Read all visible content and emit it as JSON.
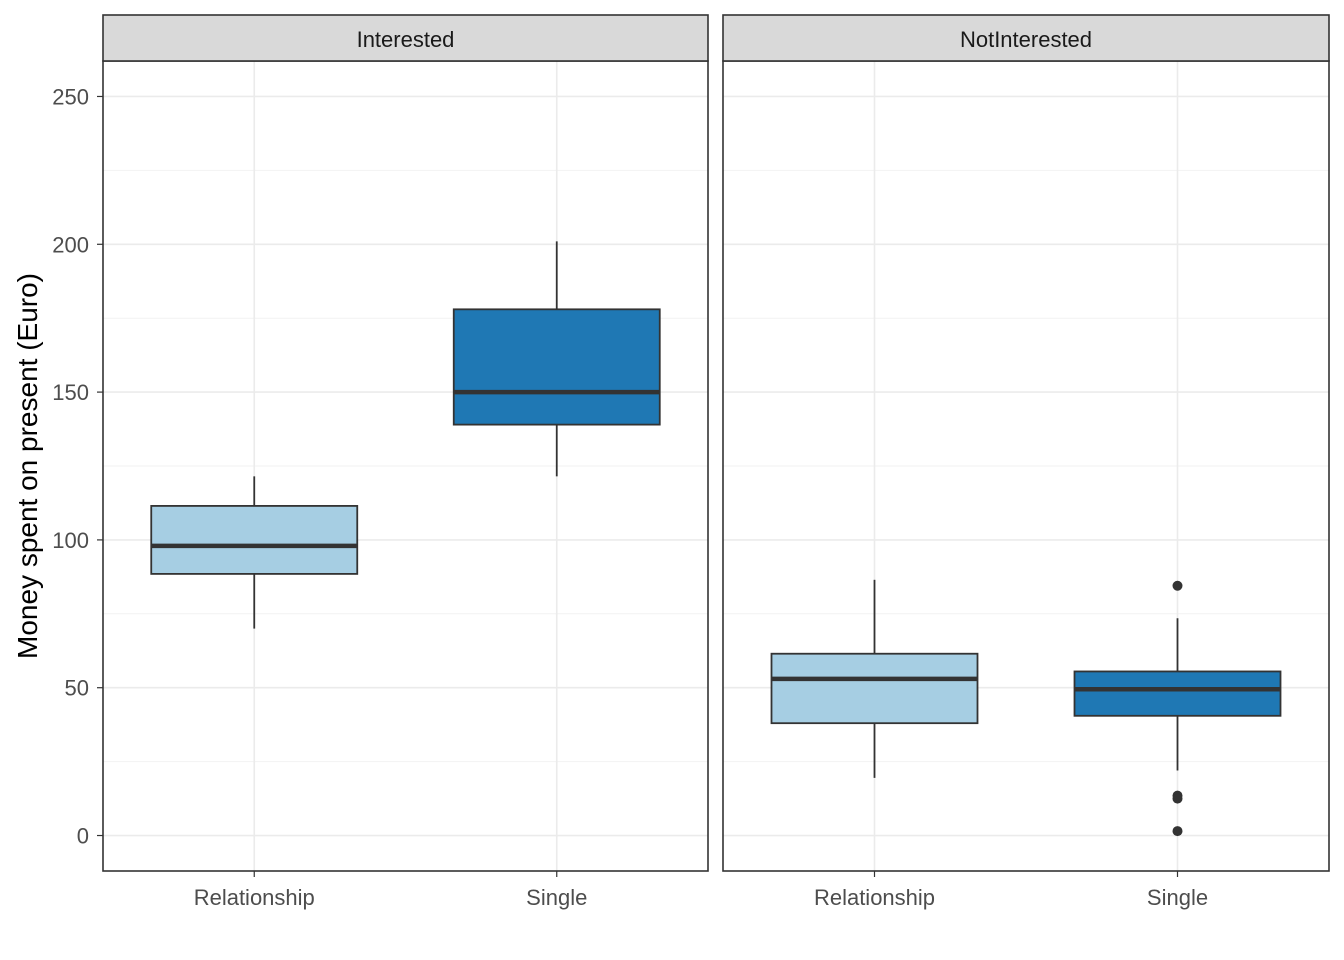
{
  "chart_data": {
    "type": "boxplot",
    "ylabel": "Money spent on present (Euro)",
    "xlabel": "",
    "ylim": [
      -12,
      262
    ],
    "y_ticks": [
      0,
      50,
      100,
      150,
      200,
      250
    ],
    "y_tick_labels": [
      "0",
      "50",
      "100",
      "150",
      "200",
      "250"
    ],
    "categories": [
      "Relationship",
      "Single"
    ],
    "colors": {
      "Relationship": "#a6cee3",
      "Single": "#1f78b4"
    },
    "grid": true,
    "panels": [
      {
        "label": "Interested",
        "boxes": [
          {
            "category": "Relationship",
            "lower_whisker": 70,
            "q1": 88.5,
            "median": 98,
            "q3": 111.5,
            "upper_whisker": 121.5,
            "outliers": []
          },
          {
            "category": "Single",
            "lower_whisker": 121.5,
            "q1": 139,
            "median": 150,
            "q3": 178,
            "upper_whisker": 201,
            "outliers": []
          }
        ]
      },
      {
        "label": "NotInterested",
        "boxes": [
          {
            "category": "Relationship",
            "lower_whisker": 19.5,
            "q1": 38,
            "median": 53,
            "q3": 61.5,
            "upper_whisker": 86.5,
            "outliers": []
          },
          {
            "category": "Single",
            "lower_whisker": 22,
            "q1": 40.5,
            "median": 49.5,
            "q3": 55.5,
            "upper_whisker": 73.5,
            "outliers": [
              84.5,
              13.5,
              12.5,
              1.5
            ]
          }
        ]
      }
    ]
  }
}
